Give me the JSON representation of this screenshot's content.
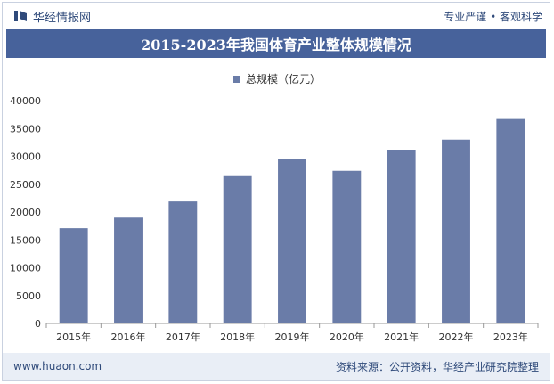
{
  "header": {
    "brand": "华经情报网",
    "slogan": "专业严谨 • 客观科学"
  },
  "footer": {
    "website": "www.huaon.com",
    "source": "资料来源：公开资料，华经产业研究院整理"
  },
  "colors": {
    "bar": "#6a7ca8",
    "title_bg": "#47629b",
    "brand": "#2f4a7a"
  },
  "chart_data": {
    "type": "bar",
    "title": "2015-2023年我国体育产业整体规模情况",
    "categories": [
      "2015年",
      "2016年",
      "2017年",
      "2018年",
      "2019年",
      "2020年",
      "2021年",
      "2022年",
      "2023年"
    ],
    "series": [
      {
        "name": "总规模（亿元）",
        "values": [
          17100,
          19000,
          21900,
          26600,
          29500,
          27400,
          31200,
          33000,
          36700
        ]
      }
    ],
    "ylim": [
      0,
      40000
    ],
    "yticks": [
      0,
      5000,
      10000,
      15000,
      20000,
      25000,
      30000,
      35000,
      40000
    ],
    "xlabel": "",
    "ylabel": "",
    "legend": "top-center"
  }
}
